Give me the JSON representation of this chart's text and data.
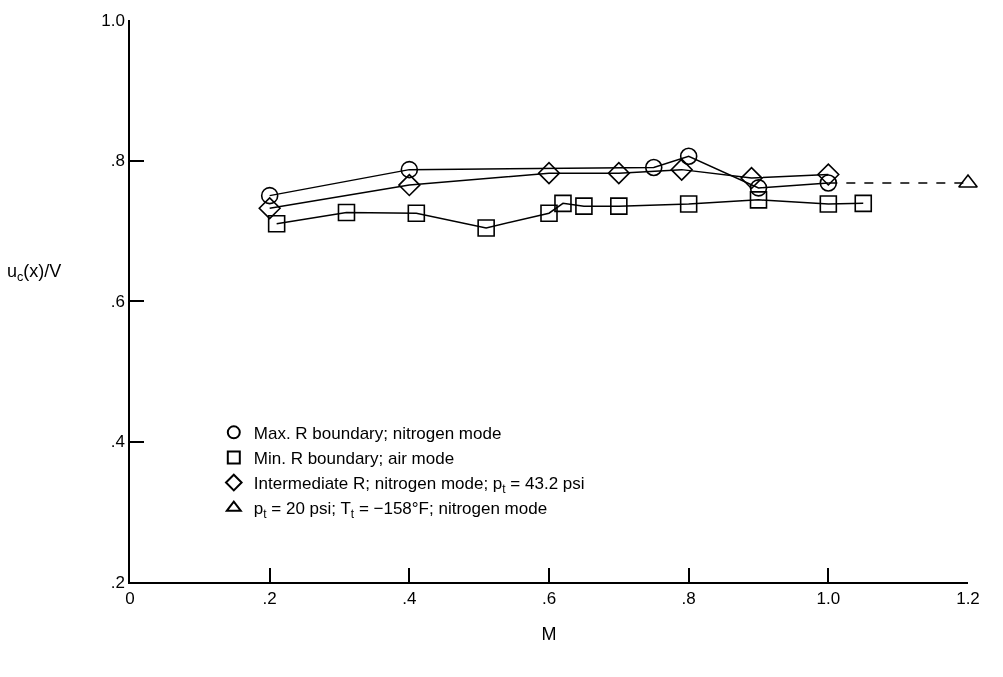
{
  "chart_data": {
    "type": "line",
    "xlabel": "M",
    "ylabel": "u$_{c}$(x)/V",
    "xlim": [
      0,
      1.2
    ],
    "xticks": [
      0,
      {
        "value": 0.2,
        "label": ".2"
      },
      {
        "value": 0.4,
        "label": ".4"
      },
      {
        "value": 0.6,
        "label": ".6"
      },
      {
        "value": 0.8,
        "label": ".8"
      },
      {
        "value": 1.0,
        "label": "1.0"
      },
      1.2
    ],
    "ylim": [
      0.2,
      1.0
    ],
    "yticks": [
      {
        "value": 0.2,
        "label": ".2"
      },
      {
        "value": 0.4,
        "label": ".4"
      },
      {
        "value": 0.6,
        "label": ".6"
      },
      {
        "value": 0.8,
        "label": ".8"
      },
      {
        "value": 1.0,
        "label": "1.0"
      }
    ],
    "legend": "bottom left",
    "series": [
      {
        "name": "Max. R boundary; nitrogen mode",
        "color": "#000000",
        "marker": "circle",
        "x": [
          0.2,
          0.4,
          0.75,
          0.8,
          0.9,
          1.0
        ],
        "values": [
          0.75,
          0.787,
          0.79,
          0.806,
          0.761,
          0.768
        ]
      },
      {
        "name": "Min. R boundary; air mode",
        "color": "#000000",
        "marker": "square",
        "x": [
          0.21,
          0.31,
          0.41,
          0.51,
          0.6,
          0.62,
          0.65,
          0.7,
          0.8,
          0.9,
          1.0,
          1.05
        ],
        "values": [
          0.71,
          0.726,
          0.725,
          0.704,
          0.725,
          0.739,
          0.735,
          0.735,
          0.738,
          0.744,
          0.738,
          0.739
        ]
      },
      {
        "name": "Intermediate R; nitrogen mode; p$_{t}$ = 43.2 psi",
        "color": "#000000",
        "marker": "diamond",
        "x": [
          0.2,
          0.4,
          0.6,
          0.7,
          0.79,
          0.89,
          1.0
        ],
        "values": [
          0.732,
          0.765,
          0.782,
          0.782,
          0.787,
          0.775,
          0.78
        ]
      },
      {
        "name": "p$_{t}$ = 20 psi; T$_{t}$ = −158°F; nitrogen mode",
        "type": "scatter",
        "color": "#000000",
        "marker": "triangle",
        "x": [
          1.2
        ],
        "values": [
          0.768
        ]
      },
      {
        "type": "line",
        "color": "#000000",
        "marker": "none",
        "line_style": "dashed",
        "x": [
          1.0,
          1.2
        ],
        "values": [
          0.768,
          0.768
        ]
      }
    ]
  }
}
